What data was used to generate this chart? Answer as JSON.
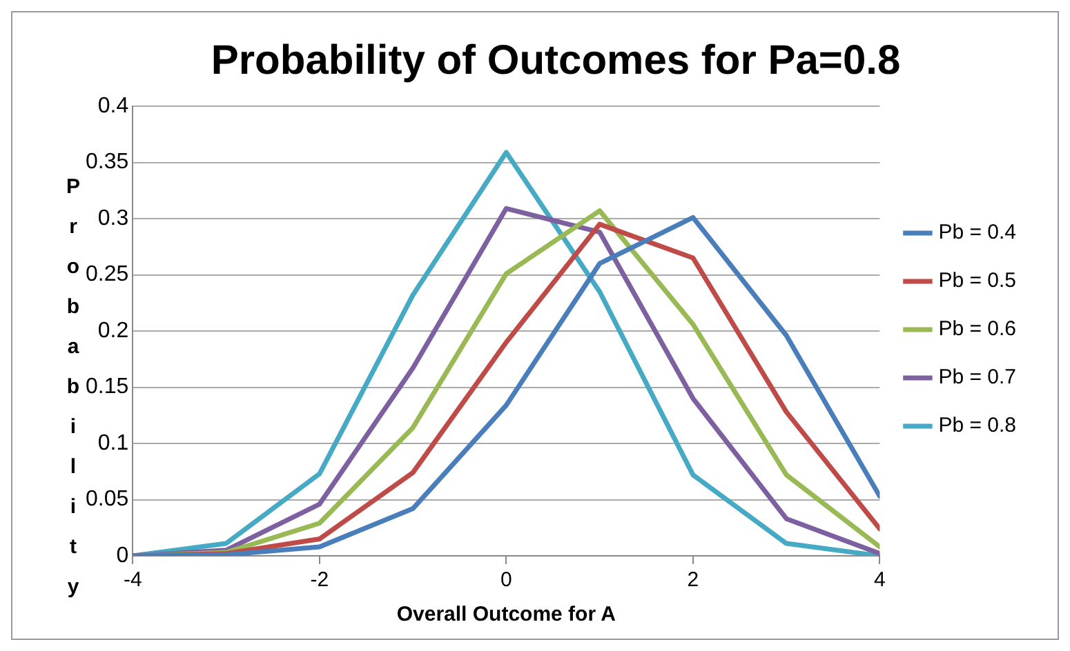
{
  "chart_data": {
    "type": "line",
    "title": "Probability of Outcomes for Pa=0.8",
    "xlabel": "Overall Outcome for A",
    "ylabel": "Probability",
    "x": [
      -4,
      -3,
      -2,
      -1,
      0,
      1,
      2,
      3,
      4
    ],
    "series": [
      {
        "name": "Pb = 0.4",
        "color": "#4a7ebb",
        "values": [
          0,
          0.001,
          0.008,
          0.042,
          0.134,
          0.26,
          0.301,
          0.196,
          0.053
        ]
      },
      {
        "name": "Pb = 0.5",
        "color": "#be4b48",
        "values": [
          0,
          0.002,
          0.015,
          0.074,
          0.19,
          0.295,
          0.265,
          0.128,
          0.024
        ]
      },
      {
        "name": "Pb = 0.6",
        "color": "#98b954",
        "values": [
          0,
          0.003,
          0.029,
          0.114,
          0.251,
          0.307,
          0.206,
          0.072,
          0.008
        ]
      },
      {
        "name": "Pb = 0.7",
        "color": "#7d60a0",
        "values": [
          0,
          0.005,
          0.046,
          0.167,
          0.309,
          0.288,
          0.14,
          0.033,
          0.002
        ]
      },
      {
        "name": "Pb = 0.8",
        "color": "#46aac5",
        "values": [
          0,
          0.011,
          0.073,
          0.232,
          0.359,
          0.235,
          0.072,
          0.011,
          0
        ]
      }
    ],
    "xlim": [
      -4,
      4
    ],
    "xticks": [
      -4,
      -2,
      0,
      2,
      4
    ],
    "ylim": [
      0,
      0.4
    ],
    "yticks": [
      0,
      0.05,
      0.1,
      0.15,
      0.2,
      0.25,
      0.3,
      0.35,
      0.4
    ],
    "grid": "y",
    "legend": "right",
    "marker": "none",
    "line_style": "solid"
  }
}
